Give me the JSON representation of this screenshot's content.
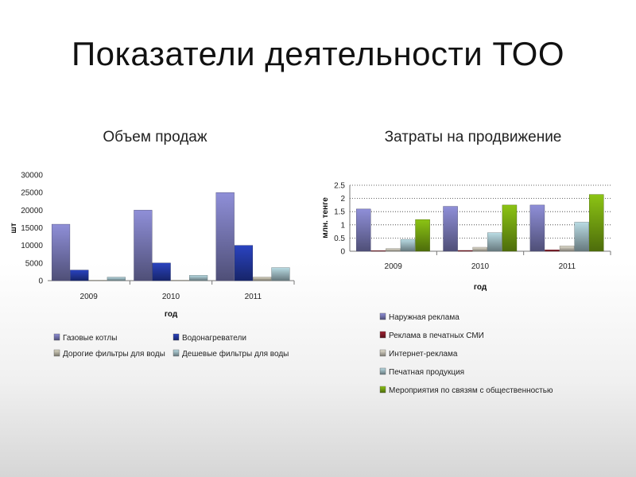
{
  "slide": {
    "title": "Показатели деятельности ТОО"
  },
  "colors": {
    "gas_boilers": "#8f8fd8",
    "water_heaters": "#2a43c0",
    "expensive_filters": "#ddd9c4",
    "cheap_filters": "#b9dbe3",
    "outdoor_ads": "#8f8fd8",
    "print_ads": "#a02030",
    "internet_ads": "#e6e2d2",
    "print_products": "#b9dbe3",
    "pr_events": "#8cc414"
  },
  "chart_data": [
    {
      "type": "bar",
      "title": "Объем продаж",
      "xlabel": "год",
      "ylabel": "шт",
      "categories": [
        "2009",
        "2010",
        "2011"
      ],
      "ylim": [
        0,
        30000
      ],
      "yticks": [
        "0",
        "5000",
        "10000",
        "15000",
        "20000",
        "25000",
        "30000"
      ],
      "grid": false,
      "legend_position": "bottom",
      "series": [
        {
          "name": "Газовые котлы",
          "values": [
            16000,
            20000,
            25000
          ],
          "color_key": "gas_boilers"
        },
        {
          "name": "Водонагреватели",
          "values": [
            3000,
            5000,
            10000
          ],
          "color_key": "water_heaters"
        },
        {
          "name": "Дорогие фильтры для воды",
          "values": [
            0,
            0,
            1000
          ],
          "color_key": "expensive_filters"
        },
        {
          "name": "Дешевые фильтры для воды",
          "values": [
            1000,
            1500,
            3700
          ],
          "color_key": "cheap_filters"
        }
      ]
    },
    {
      "type": "bar",
      "title": "Затраты на продвижение",
      "xlabel": "год",
      "ylabel": "млн. тенге",
      "categories": [
        "2009",
        "2010",
        "2011"
      ],
      "ylim": [
        0,
        2.5
      ],
      "yticks": [
        "0",
        "0.5",
        "1",
        "1.5",
        "2",
        "2.5"
      ],
      "grid": true,
      "legend_position": "bottom",
      "series": [
        {
          "name": "Наружная реклама",
          "values": [
            1.6,
            1.7,
            1.75
          ],
          "color_key": "outdoor_ads"
        },
        {
          "name": "Реклама в печатных СМИ",
          "values": [
            0.02,
            0.03,
            0.05
          ],
          "color_key": "print_ads"
        },
        {
          "name": "Интернет-реклама",
          "values": [
            0.1,
            0.15,
            0.2
          ],
          "color_key": "internet_ads"
        },
        {
          "name": "Печатная продукция",
          "values": [
            0.45,
            0.7,
            1.1
          ],
          "color_key": "print_products"
        },
        {
          "name": "Мероприятия по связям с общественностью",
          "values": [
            1.2,
            1.75,
            2.15
          ],
          "color_key": "pr_events"
        }
      ]
    }
  ]
}
